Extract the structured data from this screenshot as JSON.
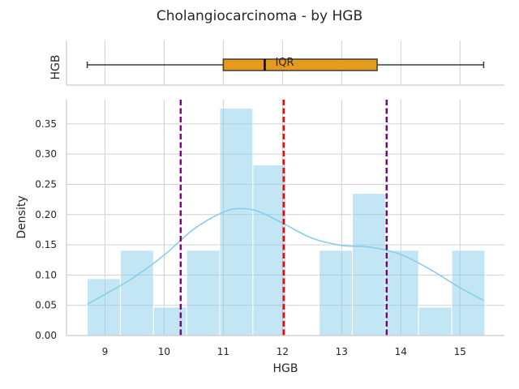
{
  "chart_data": [
    {
      "type": "boxplot",
      "ylabel": "HGB",
      "annotation": "IQR",
      "xlim": [
        8.35,
        15.75
      ],
      "stats": {
        "whisker_low": 8.7,
        "q1": 11.0,
        "median": 11.7,
        "q3": 13.6,
        "whisker_high": 15.4
      },
      "box_color": "#e69b1f",
      "median_color": "#000000"
    },
    {
      "type": "histogram",
      "title": "Cholangiocarcinoma - by HGB",
      "xlabel": "HGB",
      "ylabel": "Density",
      "xlim": [
        8.35,
        15.75
      ],
      "ylim": [
        0,
        0.39
      ],
      "xticks": [
        9,
        10,
        11,
        12,
        13,
        14,
        15
      ],
      "yticks": [
        0.0,
        0.05,
        0.1,
        0.15,
        0.2,
        0.25,
        0.3,
        0.35
      ],
      "ytick_labels": [
        "0.00",
        "0.05",
        "0.10",
        "0.15",
        "0.20",
        "0.25",
        "0.30",
        "0.35"
      ],
      "bar_color": "#87ceeb",
      "bins": [
        {
          "x0": 8.7,
          "x1": 9.26,
          "density": 0.094
        },
        {
          "x0": 9.26,
          "x1": 9.82,
          "density": 0.141
        },
        {
          "x0": 9.82,
          "x1": 10.38,
          "density": 0.047
        },
        {
          "x0": 10.38,
          "x1": 10.94,
          "density": 0.141
        },
        {
          "x0": 10.94,
          "x1": 11.5,
          "density": 0.376
        },
        {
          "x0": 11.5,
          "x1": 12.06,
          "density": 0.282
        },
        {
          "x0": 12.06,
          "x1": 12.62,
          "density": 0.0
        },
        {
          "x0": 12.62,
          "x1": 13.18,
          "density": 0.141
        },
        {
          "x0": 13.18,
          "x1": 13.74,
          "density": 0.235
        },
        {
          "x0": 13.74,
          "x1": 14.3,
          "density": 0.141
        },
        {
          "x0": 14.3,
          "x1": 14.86,
          "density": 0.047
        },
        {
          "x0": 14.86,
          "x1": 15.42,
          "density": 0.141
        }
      ],
      "kde": {
        "color": "#87ceeb",
        "x": [
          8.7,
          9.0,
          9.5,
          10.0,
          10.5,
          11.0,
          11.3,
          11.6,
          12.0,
          12.5,
          13.0,
          13.5,
          14.0,
          14.5,
          15.0,
          15.4
        ],
        "y": [
          0.052,
          0.068,
          0.097,
          0.133,
          0.176,
          0.204,
          0.21,
          0.205,
          0.186,
          0.161,
          0.149,
          0.146,
          0.134,
          0.109,
          0.079,
          0.058
        ]
      },
      "vlines": [
        {
          "x": 10.28,
          "color": "#800080",
          "style": "dashed"
        },
        {
          "x": 12.02,
          "color": "#ff0000",
          "style": "dashed"
        },
        {
          "x": 13.76,
          "color": "#800080",
          "style": "dashed"
        }
      ]
    }
  ]
}
